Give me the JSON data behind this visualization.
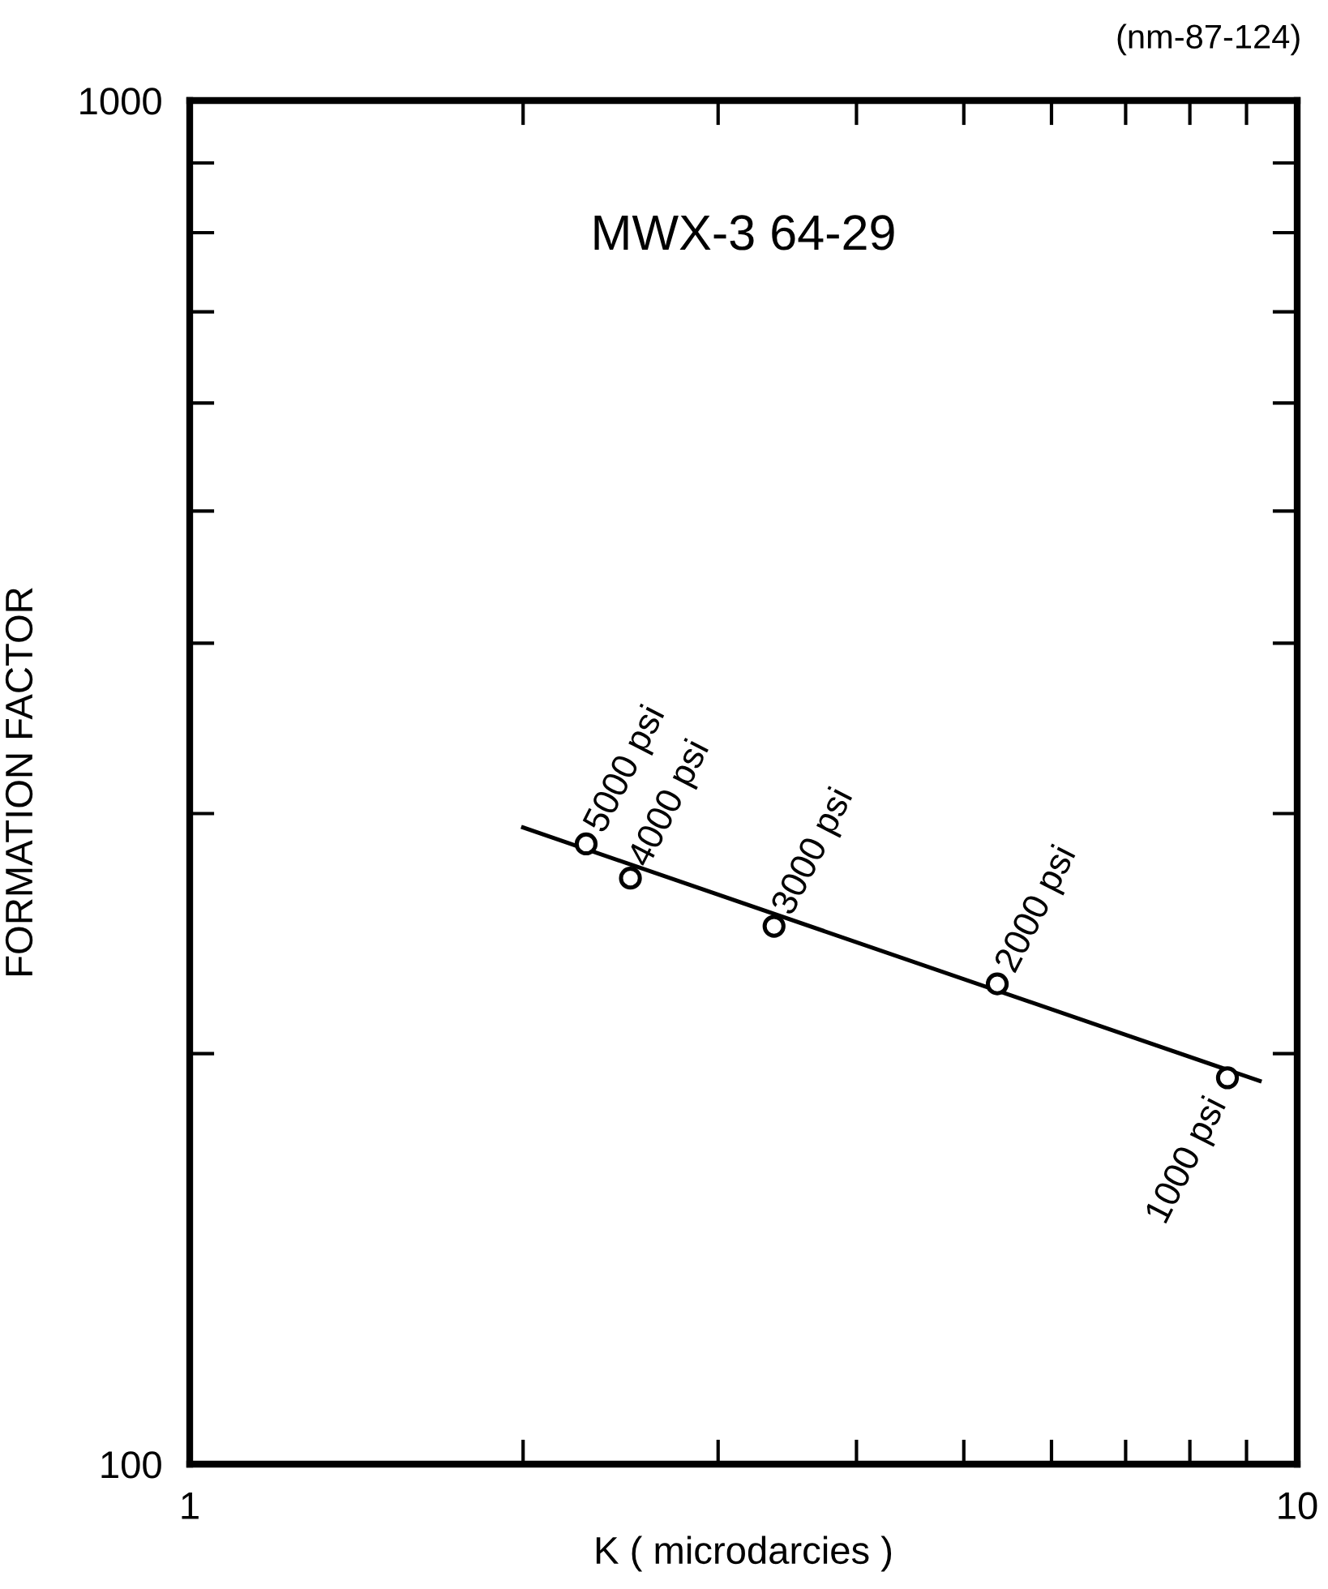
{
  "chart_data": {
    "type": "scatter",
    "title": "MWX-3 64-29",
    "xlabel": "K ( microdarcies )",
    "ylabel": "FORMATION FACTOR",
    "log": "xy",
    "legend": false,
    "xlim": [
      1,
      10
    ],
    "ylim": [
      100,
      1000
    ],
    "xticks": [
      1,
      {
        "value": 2,
        "label": null
      },
      {
        "value": 3,
        "label": null
      },
      {
        "value": 4,
        "label": null
      },
      {
        "value": 5,
        "label": null
      },
      {
        "value": 6,
        "label": null
      },
      {
        "value": 7,
        "label": null
      },
      {
        "value": 8,
        "label": null
      },
      {
        "value": 9,
        "label": null
      },
      10
    ],
    "yticks": [
      100,
      {
        "value": 200,
        "label": null
      },
      {
        "value": 300,
        "label": null
      },
      {
        "value": 400,
        "label": null
      },
      {
        "value": 500,
        "label": null
      },
      {
        "value": 600,
        "label": null
      },
      {
        "value": 700,
        "label": null
      },
      {
        "value": 800,
        "label": null
      },
      {
        "value": 900,
        "label": null
      },
      1000
    ],
    "series": [
      {
        "marker": "circle",
        "color": "#000000",
        "x": [
          2.28,
          2.5,
          3.37,
          5.36,
          8.65
        ],
        "values": [
          285,
          269,
          248,
          225,
          192
        ]
      },
      {
        "type": "line",
        "line_style": "solid",
        "color": "#000000",
        "x": [
          2.0,
          9.25
        ],
        "values": [
          293,
          191
        ]
      }
    ],
    "annotations": [
      "(nm-87-124)",
      {
        "text": "5000 psi",
        "x": 2.28,
        "y": 285
      },
      {
        "text": "4000 psi",
        "x": 2.5,
        "y": 269
      },
      {
        "text": "3000 psi",
        "x": 3.37,
        "y": 248
      },
      {
        "text": "2000 psi",
        "x": 5.36,
        "y": 225
      },
      {
        "text": "1000 psi",
        "x": 8.65,
        "y": 192
      }
    ]
  }
}
